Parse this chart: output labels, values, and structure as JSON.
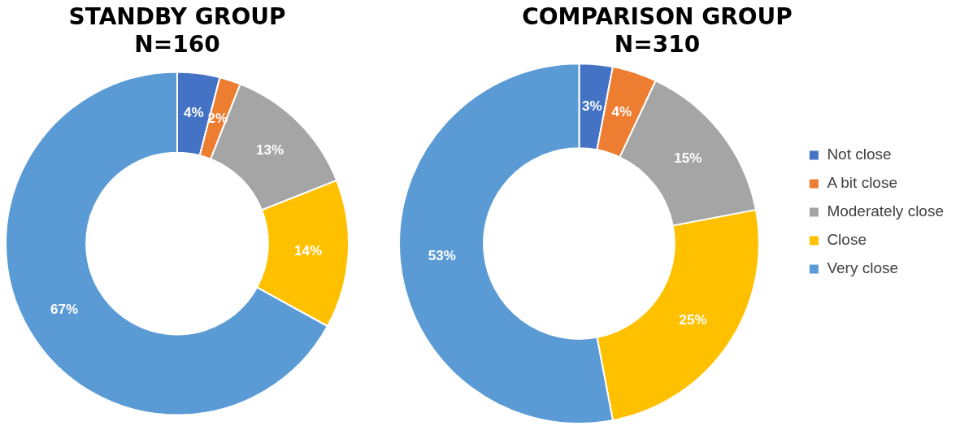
{
  "chart_data": [
    {
      "type": "donut",
      "title": "STANDBY GROUP",
      "subtitle": "N=160",
      "categories": [
        null,
        null,
        null,
        null,
        null
      ],
      "values": [
        4,
        2,
        13,
        14,
        67
      ],
      "value_labels": [
        "4%",
        "2%",
        "13%",
        "14%",
        "67%"
      ],
      "colors": [
        "#4472c4",
        "#ed7d31",
        "#a5a5a5",
        "#ffc000",
        "#5b9bd5"
      ],
      "legend": false
    },
    {
      "type": "donut",
      "title": "COMPARISON GROUP",
      "subtitle": "N=310",
      "categories": [
        "Not close",
        "A bit close",
        "Moderately close",
        "Close",
        "Very close"
      ],
      "values": [
        3,
        4,
        15,
        25,
        53
      ],
      "value_labels": [
        "3%",
        "4%",
        "15%",
        "25%",
        "53%"
      ],
      "colors": [
        "#4472c4",
        "#ed7d31",
        "#a5a5a5",
        "#ffc000",
        "#5b9bd5"
      ],
      "legend": "right"
    }
  ]
}
